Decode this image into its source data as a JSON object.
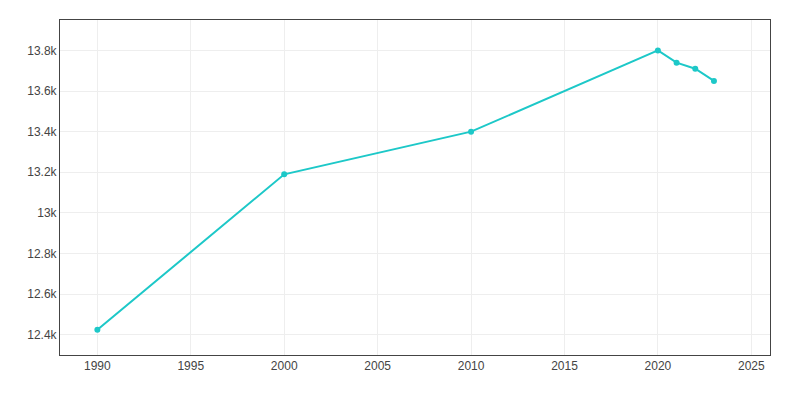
{
  "chart_data": {
    "type": "line",
    "x": [
      1990,
      2000,
      2010,
      2020,
      2021,
      2022,
      2023
    ],
    "values": [
      12424,
      13190,
      13400,
      13800,
      13740,
      13710,
      13650
    ],
    "color": "#1dc8c8",
    "marker": "circle",
    "xlim": [
      1988,
      2026
    ],
    "ylim": [
      12300,
      13950
    ],
    "xticks": [
      1990,
      1995,
      2000,
      2005,
      2010,
      2015,
      2020,
      2025
    ],
    "yticks": [
      {
        "value": 12400,
        "label": "12.4k"
      },
      {
        "value": 12600,
        "label": "12.6k"
      },
      {
        "value": 12800,
        "label": "12.8k"
      },
      {
        "value": 13000,
        "label": "13k"
      },
      {
        "value": 13200,
        "label": "13.2k"
      },
      {
        "value": 13400,
        "label": "13.4k"
      },
      {
        "value": 13600,
        "label": "13.6k"
      },
      {
        "value": 13800,
        "label": "13.8k"
      }
    ],
    "grid": true
  }
}
